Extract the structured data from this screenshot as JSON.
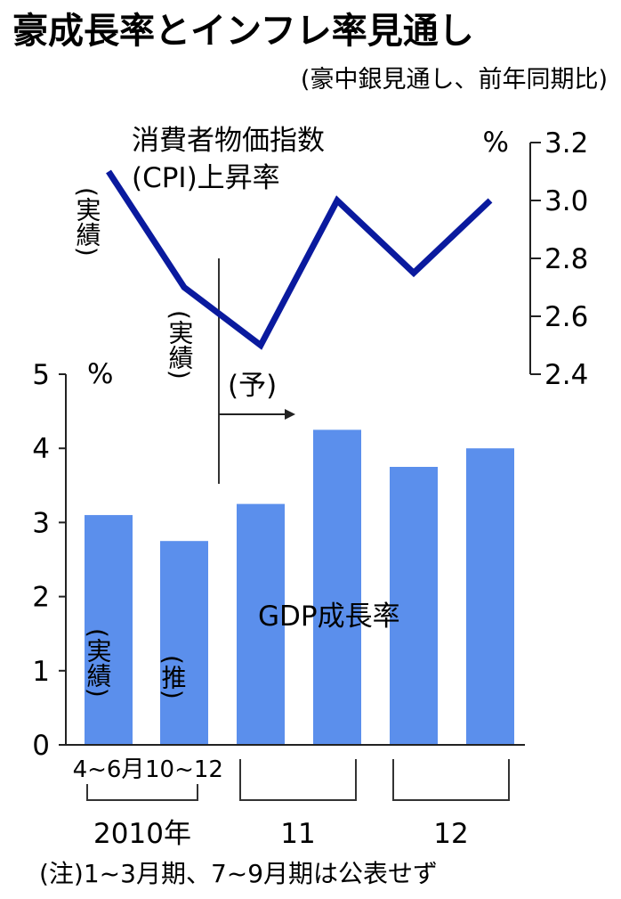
{
  "title": "豪成長率とインフレ率見通し",
  "subtitle": "(豪中銀見通し、前年同期比)",
  "chart_data": [
    {
      "type": "line",
      "name": "cpi",
      "label_line1": "消費者物価指数",
      "label_line2": "(CPI)上昇率",
      "unit": "%",
      "y_ticks": [
        "3.2",
        "3.0",
        "2.8",
        "2.6",
        "2.4"
      ],
      "ylim": [
        2.4,
        3.2
      ],
      "axis_position": "right",
      "values": [
        3.1,
        2.7,
        2.5,
        3.0,
        2.75,
        3.0
      ],
      "color": "#0a1a9e"
    },
    {
      "type": "bar",
      "name": "gdp",
      "label": "GDP成長率",
      "unit": "%",
      "y_ticks": [
        "5",
        "4",
        "3",
        "2",
        "1",
        "0"
      ],
      "ylim": [
        0,
        5
      ],
      "axis_position": "left",
      "values": [
        3.1,
        2.75,
        3.25,
        4.25,
        3.75,
        4.0
      ],
      "color": "#5b8fec"
    }
  ],
  "x_labels": {
    "q1": "4~6月",
    "q2": "10~12",
    "year_2010": "2010年",
    "year_2011": "11",
    "year_2012": "12"
  },
  "annotations": {
    "cpi_actual_1": "(実績)",
    "cpi_actual_2": "(実績)",
    "forecast": "(予)",
    "bar_actual": "(実績)",
    "bar_estimate": "(推)"
  },
  "note": "(注)1~3月期、7~9月期は公表せず"
}
